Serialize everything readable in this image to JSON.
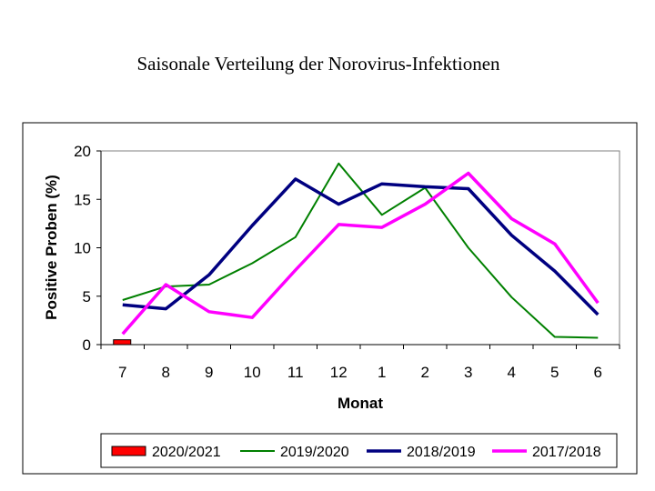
{
  "page": {
    "title": "Saisonale Verteilung der Norovirus-Infektionen"
  },
  "chart_data": {
    "type": "line",
    "title": "Saisonale Verteilung der Norovirus-Infektionen",
    "xlabel": "Monat",
    "ylabel": "Positive Proben (%)",
    "categories": [
      "7",
      "8",
      "9",
      "10",
      "11",
      "12",
      "1",
      "2",
      "3",
      "4",
      "5",
      "6"
    ],
    "ylim": [
      0,
      20
    ],
    "yticks": [
      0,
      5,
      10,
      15,
      20
    ],
    "grid": false,
    "legend_position": "bottom",
    "series": [
      {
        "name": "2020/2021",
        "render": "bar",
        "color": "#ff0000",
        "values": [
          0.5,
          null,
          null,
          null,
          null,
          null,
          null,
          null,
          null,
          null,
          null,
          null
        ]
      },
      {
        "name": "2019/2020",
        "render": "line",
        "color": "#008000",
        "values": [
          4.6,
          6.0,
          6.2,
          8.4,
          11.1,
          18.7,
          13.4,
          16.2,
          10.0,
          4.9,
          0.8,
          0.7
        ]
      },
      {
        "name": "2018/2019",
        "render": "line",
        "color": "#000080",
        "values": [
          4.1,
          3.7,
          7.2,
          12.3,
          17.1,
          14.5,
          16.6,
          16.3,
          16.1,
          11.3,
          7.6,
          3.1
        ]
      },
      {
        "name": "2017/2018",
        "render": "line",
        "color": "#ff00ff",
        "values": [
          1.1,
          6.2,
          3.4,
          2.8,
          7.7,
          12.4,
          12.1,
          14.5,
          17.7,
          13.0,
          10.4,
          4.3
        ]
      }
    ]
  }
}
